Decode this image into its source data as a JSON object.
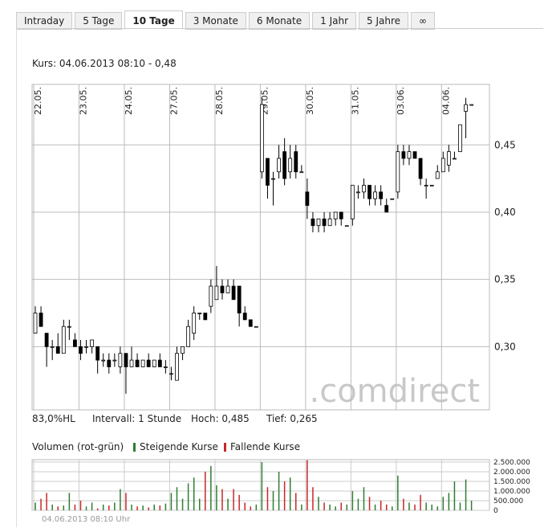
{
  "tabs": [
    {
      "label": "Intraday"
    },
    {
      "label": "5 Tage"
    },
    {
      "label": "10 Tage",
      "active": true
    },
    {
      "label": "3 Monate"
    },
    {
      "label": "6 Monate"
    },
    {
      "label": "1 Jahr"
    },
    {
      "label": "5 Jahre"
    },
    {
      "label": "∞"
    }
  ],
  "kurs": "Kurs: 04.06.2013 08:10 - 0,48",
  "stats": [
    "83,0%HL",
    "Intervall: 1 Stunde",
    "Hoch: 0,485",
    "Tief: 0,265"
  ],
  "volume_legend": {
    "title": "Volumen (rot-grün)",
    "up": "Steigende Kurse",
    "down": "Fallende Kurse"
  },
  "watermark": ".comdirect",
  "footer": "04.06.2013 08:10 Uhr",
  "chart_data": [
    {
      "type": "candlestick",
      "categories": [
        "22.05.",
        null,
        null,
        null,
        null,
        null,
        null,
        null,
        "23.05.",
        null,
        null,
        null,
        null,
        null,
        null,
        null,
        "24.05.",
        null,
        null,
        null,
        null,
        null,
        null,
        null,
        "27.05.",
        null,
        null,
        null,
        null,
        null,
        null,
        null,
        "28.05.",
        null,
        null,
        null,
        null,
        null,
        null,
        null,
        "29.05.",
        null,
        null,
        null,
        null,
        null,
        null,
        null,
        "30.05.",
        null,
        null,
        null,
        null,
        null,
        null,
        null,
        "31.05.",
        null,
        null,
        null,
        null,
        null,
        null,
        null,
        "03.06.",
        null,
        null,
        null,
        null,
        null,
        null,
        null,
        "04.06.",
        null,
        null,
        null,
        null,
        null
      ],
      "open": [
        0.31,
        0.325,
        0.31,
        0.3,
        0.3,
        0.295,
        0.315,
        0.305,
        0.3,
        0.3,
        0.3,
        0.3,
        0.29,
        0.29,
        0.29,
        0.285,
        0.295,
        0.285,
        0.29,
        0.285,
        0.29,
        0.285,
        0.29,
        0.285,
        0.28,
        0.275,
        0.295,
        0.3,
        0.31,
        0.325,
        0.325,
        0.33,
        0.335,
        0.345,
        0.34,
        0.345,
        0.345,
        0.325,
        0.32,
        0.315,
        0.43,
        0.44,
        0.425,
        0.43,
        0.445,
        0.43,
        0.445,
        0.43,
        0.415,
        0.395,
        0.39,
        0.395,
        0.39,
        0.395,
        0.4,
        0.39,
        0.395,
        0.415,
        0.415,
        0.42,
        0.41,
        0.415,
        0.405,
        0.41,
        0.415,
        0.445,
        0.44,
        0.445,
        0.44,
        0.42,
        0.42,
        0.425,
        0.43,
        0.435,
        0.44,
        0.445,
        0.475,
        0.48
      ],
      "high": [
        0.33,
        0.33,
        0.31,
        0.305,
        0.31,
        0.32,
        0.32,
        0.31,
        0.305,
        0.305,
        0.305,
        0.3,
        0.295,
        0.295,
        0.295,
        0.3,
        0.295,
        0.3,
        0.295,
        0.29,
        0.295,
        0.29,
        0.295,
        0.29,
        0.285,
        0.3,
        0.3,
        0.32,
        0.33,
        0.325,
        0.325,
        0.35,
        0.36,
        0.35,
        0.35,
        0.35,
        0.345,
        0.33,
        0.32,
        0.315,
        0.485,
        0.44,
        0.43,
        0.45,
        0.455,
        0.45,
        0.45,
        0.435,
        0.425,
        0.4,
        0.395,
        0.4,
        0.4,
        0.4,
        0.4,
        0.39,
        0.42,
        0.42,
        0.425,
        0.42,
        0.42,
        0.42,
        0.41,
        0.41,
        0.45,
        0.45,
        0.45,
        0.445,
        0.44,
        0.425,
        0.42,
        0.435,
        0.445,
        0.45,
        0.445,
        0.465,
        0.485,
        0.48
      ],
      "low": [
        0.31,
        0.315,
        0.285,
        0.29,
        0.295,
        0.295,
        0.305,
        0.3,
        0.29,
        0.295,
        0.295,
        0.28,
        0.285,
        0.28,
        0.285,
        0.28,
        0.265,
        0.285,
        0.285,
        0.285,
        0.285,
        0.285,
        0.285,
        0.28,
        0.275,
        0.275,
        0.29,
        0.3,
        0.305,
        0.32,
        0.32,
        0.325,
        0.335,
        0.335,
        0.34,
        0.335,
        0.315,
        0.32,
        0.315,
        0.315,
        0.425,
        0.41,
        0.405,
        0.425,
        0.42,
        0.425,
        0.425,
        0.43,
        0.395,
        0.385,
        0.385,
        0.385,
        0.39,
        0.39,
        0.39,
        0.39,
        0.39,
        0.41,
        0.41,
        0.405,
        0.405,
        0.405,
        0.4,
        0.41,
        0.41,
        0.435,
        0.435,
        0.44,
        0.42,
        0.41,
        0.42,
        0.425,
        0.43,
        0.43,
        0.44,
        0.445,
        0.455,
        0.48
      ],
      "close": [
        0.325,
        0.315,
        0.3,
        0.3,
        0.295,
        0.315,
        0.315,
        0.3,
        0.295,
        0.3,
        0.305,
        0.29,
        0.29,
        0.285,
        0.29,
        0.295,
        0.285,
        0.29,
        0.285,
        0.29,
        0.285,
        0.29,
        0.285,
        0.285,
        0.28,
        0.295,
        0.3,
        0.315,
        0.325,
        0.325,
        0.32,
        0.345,
        0.345,
        0.34,
        0.345,
        0.335,
        0.325,
        0.32,
        0.315,
        0.315,
        0.48,
        0.42,
        0.425,
        0.44,
        0.425,
        0.44,
        0.43,
        0.43,
        0.405,
        0.39,
        0.395,
        0.39,
        0.395,
        0.4,
        0.395,
        0.39,
        0.42,
        0.415,
        0.42,
        0.41,
        0.415,
        0.41,
        0.4,
        0.41,
        0.445,
        0.44,
        0.445,
        0.44,
        0.425,
        0.42,
        0.42,
        0.43,
        0.44,
        0.445,
        0.44,
        0.465,
        0.48,
        0.48
      ],
      "ylim": [
        0.253,
        0.495
      ],
      "yticks": [
        {
          "value": 0.3,
          "label": "0,30"
        },
        {
          "value": 0.35,
          "label": "0,35"
        },
        {
          "value": 0.4,
          "label": "0,40"
        },
        {
          "value": 0.45,
          "label": "0,45"
        }
      ],
      "grid": true,
      "up_color": "#ffffff",
      "down_color": "#000000"
    },
    {
      "type": "volume",
      "values": [
        400000,
        600000,
        900000,
        300000,
        200000,
        250000,
        900000,
        300000,
        500000,
        200000,
        400000,
        100000,
        300000,
        250000,
        400000,
        1100000,
        900000,
        300000,
        200000,
        250000,
        150000,
        300000,
        250000,
        350000,
        900000,
        1200000,
        600000,
        1400000,
        1700000,
        600000,
        2000000,
        2300000,
        1300000,
        1100000,
        600000,
        1100000,
        800000,
        400000,
        200000,
        300000,
        2500000,
        1200000,
        1000000,
        2000000,
        1500000,
        1700000,
        900000,
        300000,
        2600000,
        1200000,
        700000,
        400000,
        300000,
        200000,
        400000,
        300000,
        1000000,
        600000,
        1200000,
        700000,
        300000,
        500000,
        300000,
        200000,
        1800000,
        600000,
        400000,
        300000,
        800000,
        400000,
        300000,
        200000,
        700000,
        900000,
        1500000,
        400000,
        1600000,
        500000
      ],
      "ylim": [
        0,
        2625000
      ],
      "yticks": [
        0,
        {
          "value": 500000,
          "label": "500.000"
        },
        {
          "value": 1000000,
          "label": "1.000.000"
        },
        {
          "value": 1500000,
          "label": "1.500.000"
        },
        {
          "value": 2000000,
          "label": "2.000.000"
        },
        {
          "value": 2500000,
          "label": "2.500.000"
        }
      ],
      "up_color": "#2e7d32",
      "down_color": "#c62828"
    }
  ]
}
